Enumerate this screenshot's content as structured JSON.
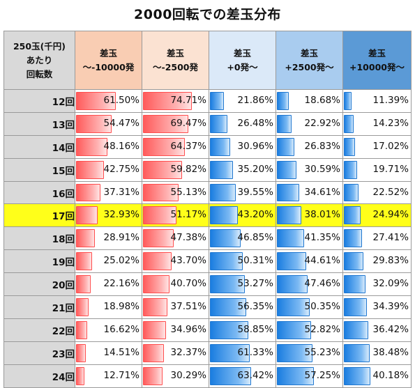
{
  "title": "2000回転での差玉分布",
  "row_header": "250玉(千円)\nあたり\n回転数",
  "colors": {
    "bar_red": "#ff5b5b",
    "bar_blue": "#1a7de0",
    "highlight": "#ffff1a"
  },
  "chart_data": {
    "type": "table",
    "title": "2000回転での差玉分布",
    "columns": [
      "差玉\n～-10000発",
      "差玉\n～-2500発",
      "差玉\n+0発～",
      "差玉\n+2500発～",
      "差玉\n+10000発～"
    ],
    "bar_color": [
      "red",
      "red",
      "blue",
      "blue",
      "blue"
    ],
    "rows": [
      "12回",
      "13回",
      "14回",
      "15回",
      "16回",
      "17回",
      "18回",
      "19回",
      "20回",
      "21回",
      "22回",
      "23回",
      "24回"
    ],
    "highlight_row": "17回",
    "unit": "%",
    "values": [
      [
        61.5,
        74.71,
        21.86,
        18.68,
        11.39
      ],
      [
        54.47,
        69.47,
        26.48,
        22.92,
        14.23
      ],
      [
        48.16,
        64.37,
        30.96,
        26.83,
        17.02
      ],
      [
        42.75,
        59.82,
        35.2,
        30.59,
        19.71
      ],
      [
        37.31,
        55.13,
        39.55,
        34.61,
        22.52
      ],
      [
        32.93,
        51.17,
        43.2,
        38.01,
        24.94
      ],
      [
        28.91,
        47.38,
        46.85,
        41.35,
        27.41
      ],
      [
        25.02,
        43.7,
        50.31,
        44.61,
        29.83
      ],
      [
        22.16,
        40.7,
        53.27,
        47.46,
        32.09
      ],
      [
        18.98,
        37.51,
        56.35,
        50.35,
        34.39
      ],
      [
        16.62,
        34.96,
        58.85,
        52.82,
        36.42
      ],
      [
        14.51,
        32.37,
        61.33,
        55.23,
        38.48
      ],
      [
        12.71,
        30.29,
        63.42,
        57.25,
        40.18
      ]
    ]
  }
}
